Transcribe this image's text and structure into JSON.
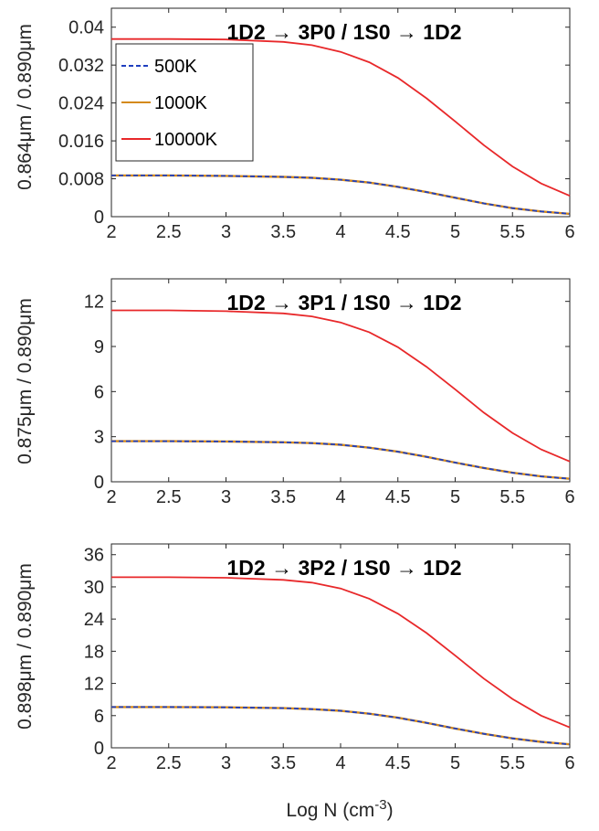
{
  "chart_data": [
    {
      "type": "line",
      "title": "1D2 → 3P0 / 1S0 → 1D2",
      "ylabel": "0.864μm / 0.890μm",
      "xlabel": "",
      "xlim": [
        2,
        6
      ],
      "ylim": [
        0,
        0.044
      ],
      "xticks": [
        "2",
        "2.5",
        "3",
        "3.5",
        "4",
        "4.5",
        "5",
        "5.5",
        "6"
      ],
      "yticks": [
        "0",
        "0.008",
        "0.016",
        "0.024",
        "0.032",
        "0.04"
      ],
      "ytick_values": [
        0,
        0.008,
        0.016,
        0.024,
        0.032,
        0.04
      ],
      "grid": false,
      "legend": {
        "location": "top-left",
        "entries": [
          {
            "label": "500K",
            "color": "#1f3fbf",
            "style": "dashed"
          },
          {
            "label": "1000K",
            "color": "#d48a1c",
            "style": "solid"
          },
          {
            "label": "10000K",
            "color": "#e8282a",
            "style": "solid"
          }
        ]
      },
      "x": [
        2,
        2.5,
        3,
        3.5,
        3.75,
        4,
        4.25,
        4.5,
        4.75,
        5,
        5.25,
        5.5,
        5.75,
        6
      ],
      "series": [
        {
          "name": "500K",
          "color": "#1f3fbf",
          "style": "dashed",
          "values": [
            0.0087,
            0.0087,
            0.0086,
            0.0084,
            0.0082,
            0.0078,
            0.0072,
            0.0063,
            0.0052,
            0.004,
            0.0028,
            0.0018,
            0.0011,
            0.0006
          ]
        },
        {
          "name": "1000K",
          "color": "#d48a1c",
          "style": "solid",
          "values": [
            0.0087,
            0.0087,
            0.0086,
            0.0084,
            0.0082,
            0.0078,
            0.0072,
            0.0063,
            0.0052,
            0.004,
            0.0028,
            0.0018,
            0.0011,
            0.0006
          ]
        },
        {
          "name": "10000K",
          "color": "#e8282a",
          "style": "solid",
          "values": [
            0.0375,
            0.0375,
            0.0374,
            0.0369,
            0.0362,
            0.0348,
            0.0326,
            0.0293,
            0.025,
            0.0201,
            0.0151,
            0.0106,
            0.007,
            0.0044
          ]
        }
      ]
    },
    {
      "type": "line",
      "title": "1D2 → 3P1 / 1S0 → 1D2",
      "ylabel": "0.875μm / 0.890μm",
      "xlabel": "",
      "xlim": [
        2,
        6
      ],
      "ylim": [
        0,
        13.5
      ],
      "xticks": [
        "2",
        "2.5",
        "3",
        "3.5",
        "4",
        "4.5",
        "5",
        "5.5",
        "6"
      ],
      "yticks": [
        "0",
        "3",
        "6",
        "9",
        "12"
      ],
      "ytick_values": [
        0,
        3,
        6,
        9,
        12
      ],
      "grid": false,
      "x": [
        2,
        2.5,
        3,
        3.5,
        3.75,
        4,
        4.25,
        4.5,
        4.75,
        5,
        5.25,
        5.5,
        5.75,
        6
      ],
      "series": [
        {
          "name": "500K",
          "color": "#1f3fbf",
          "style": "dashed",
          "values": [
            2.7,
            2.7,
            2.68,
            2.63,
            2.57,
            2.46,
            2.27,
            2.0,
            1.66,
            1.28,
            0.92,
            0.6,
            0.36,
            0.2
          ]
        },
        {
          "name": "1000K",
          "color": "#d48a1c",
          "style": "solid",
          "values": [
            2.7,
            2.7,
            2.68,
            2.63,
            2.57,
            2.46,
            2.27,
            2.0,
            1.66,
            1.28,
            0.92,
            0.6,
            0.36,
            0.2
          ]
        },
        {
          "name": "10000K",
          "color": "#e8282a",
          "style": "solid",
          "values": [
            11.4,
            11.4,
            11.35,
            11.2,
            11.0,
            10.6,
            9.95,
            8.95,
            7.65,
            6.15,
            4.6,
            3.25,
            2.15,
            1.35
          ]
        }
      ]
    },
    {
      "type": "line",
      "title": "1D2 → 3P2 / 1S0 → 1D2",
      "ylabel": "0.898μm / 0.890μm",
      "xlabel": "Log N (cm",
      "xlabel_superscript": "-3",
      "xlabel_suffix": ")",
      "xlim": [
        2,
        6
      ],
      "ylim": [
        0,
        38
      ],
      "xticks": [
        "2",
        "2.5",
        "3",
        "3.5",
        "4",
        "4.5",
        "5",
        "5.5",
        "6"
      ],
      "yticks": [
        "0",
        "6",
        "12",
        "18",
        "24",
        "30",
        "36"
      ],
      "ytick_values": [
        0,
        6,
        12,
        18,
        24,
        30,
        36
      ],
      "grid": false,
      "x": [
        2,
        2.5,
        3,
        3.5,
        3.75,
        4,
        4.25,
        4.5,
        4.75,
        5,
        5.25,
        5.5,
        5.75,
        6
      ],
      "series": [
        {
          "name": "500K",
          "color": "#1f3fbf",
          "style": "dashed",
          "values": [
            7.6,
            7.6,
            7.55,
            7.4,
            7.2,
            6.9,
            6.35,
            5.6,
            4.65,
            3.6,
            2.6,
            1.75,
            1.1,
            0.65
          ]
        },
        {
          "name": "1000K",
          "color": "#d48a1c",
          "style": "solid",
          "values": [
            7.6,
            7.6,
            7.55,
            7.4,
            7.2,
            6.9,
            6.35,
            5.6,
            4.65,
            3.6,
            2.6,
            1.75,
            1.1,
            0.65
          ]
        },
        {
          "name": "10000K",
          "color": "#e8282a",
          "style": "solid",
          "values": [
            31.8,
            31.8,
            31.7,
            31.3,
            30.8,
            29.7,
            27.8,
            25.0,
            21.4,
            17.2,
            12.9,
            9.1,
            6.0,
            3.8
          ]
        }
      ]
    }
  ]
}
